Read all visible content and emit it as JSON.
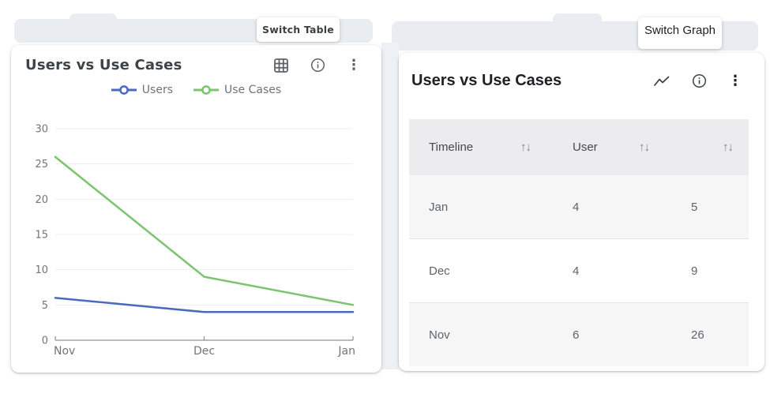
{
  "left_card": {
    "title": "Users vs Use Cases",
    "tooltip": "Switch Table",
    "header_icons": [
      "table-grid-icon",
      "info-icon",
      "kebab-menu-icon"
    ]
  },
  "chart_data": {
    "type": "line",
    "x": [
      "Nov",
      "Dec",
      "Jan"
    ],
    "series": [
      {
        "name": "Users",
        "color": "#4a6bbd",
        "values": [
          6,
          4,
          4
        ]
      },
      {
        "name": "Use Cases",
        "color": "#7cc46f",
        "values": [
          26,
          9,
          5
        ]
      }
    ],
    "title": "Users vs Use Cases",
    "xlabel": "",
    "ylabel": "",
    "ylim": [
      0,
      30
    ],
    "yticks": [
      0,
      5,
      10,
      15,
      20,
      25,
      30
    ],
    "grid": true,
    "legend_position": "top"
  },
  "right_card": {
    "title": "Users vs Use Cases",
    "tooltip": "Switch Graph",
    "header_icons": [
      "line-chart-icon",
      "info-icon",
      "kebab-menu-icon"
    ],
    "table": {
      "sort_icon": "↑↓",
      "columns": [
        {
          "label": "Timeline"
        },
        {
          "label": "User"
        },
        {
          "label": ""
        }
      ],
      "rows": [
        [
          "Jan",
          "4",
          "5"
        ],
        [
          "Dec",
          "4",
          "9"
        ],
        [
          "Nov",
          "6",
          "26"
        ]
      ]
    }
  },
  "colors": {
    "users_line": "#4a6bbd",
    "use_cases_line": "#7cc46f",
    "band": "#e9edf1",
    "table_header_bg": "#ececee",
    "row_shade": "#f6f6f7"
  }
}
